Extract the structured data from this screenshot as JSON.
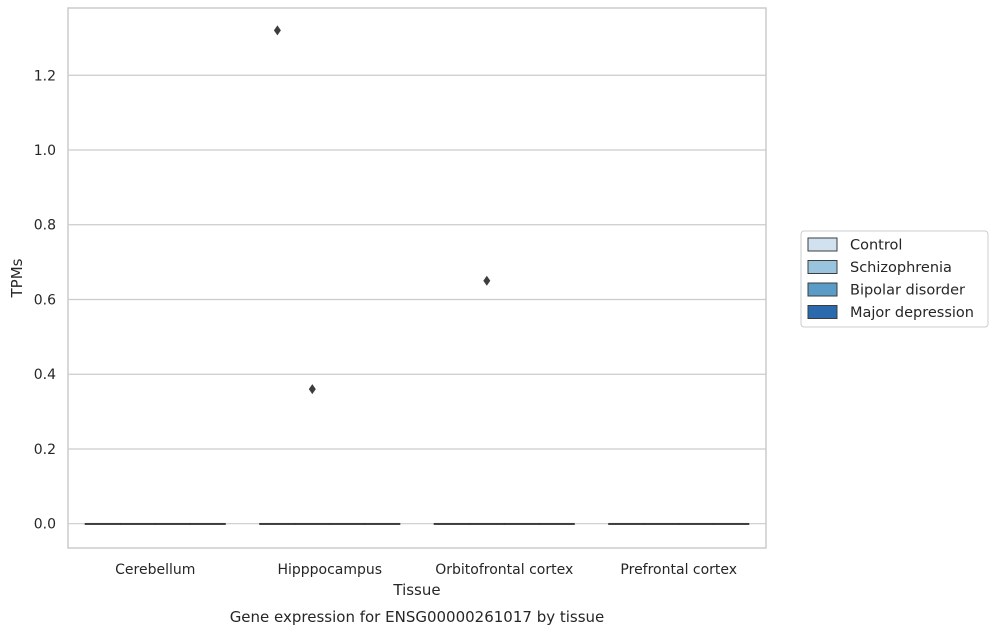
{
  "chart_data": {
    "type": "box",
    "title": "",
    "caption": "Gene expression for ENSG00000261017 by tissue",
    "xlabel": "Tissue",
    "ylabel": "TPMs",
    "ylim": [
      -0.065,
      1.38
    ],
    "yticks": [
      0.0,
      0.2,
      0.4,
      0.6,
      0.8,
      1.0,
      1.2
    ],
    "ytick_labels": [
      "0.0",
      "0.2",
      "0.4",
      "0.6",
      "0.8",
      "1.0",
      "1.2"
    ],
    "categories": [
      "Cerebellum",
      "Hipppocampus",
      "Orbitofrontal cortex",
      "Prefrontal cortex"
    ],
    "grid": true,
    "legend_position": "right",
    "series": [
      {
        "name": "Control",
        "color": "#d1e1f0",
        "boxes": [
          {
            "q1": 0,
            "median": 0,
            "q3": 0,
            "whisker_low": 0,
            "whisker_high": 0,
            "outliers": []
          },
          {
            "q1": 0,
            "median": 0,
            "q3": 0,
            "whisker_low": 0,
            "whisker_high": 0,
            "outliers": [
              1.32
            ]
          },
          {
            "q1": 0,
            "median": 0,
            "q3": 0,
            "whisker_low": 0,
            "whisker_high": 0,
            "outliers": []
          },
          {
            "q1": 0,
            "median": 0,
            "q3": 0,
            "whisker_low": 0,
            "whisker_high": 0,
            "outliers": []
          }
        ]
      },
      {
        "name": "Schizophrenia",
        "color": "#9ac3dd",
        "boxes": [
          {
            "q1": 0,
            "median": 0,
            "q3": 0,
            "whisker_low": 0,
            "whisker_high": 0,
            "outliers": []
          },
          {
            "q1": 0,
            "median": 0,
            "q3": 0,
            "whisker_low": 0,
            "whisker_high": 0,
            "outliers": [
              0.36
            ]
          },
          {
            "q1": 0,
            "median": 0,
            "q3": 0,
            "whisker_low": 0,
            "whisker_high": 0,
            "outliers": [
              0.65
            ]
          },
          {
            "q1": 0,
            "median": 0,
            "q3": 0,
            "whisker_low": 0,
            "whisker_high": 0,
            "outliers": []
          }
        ]
      },
      {
        "name": "Bipolar disorder",
        "color": "#5a9bc8",
        "boxes": [
          {
            "q1": 0,
            "median": 0,
            "q3": 0,
            "whisker_low": 0,
            "whisker_high": 0,
            "outliers": []
          },
          {
            "q1": 0,
            "median": 0,
            "q3": 0,
            "whisker_low": 0,
            "whisker_high": 0,
            "outliers": []
          },
          {
            "q1": 0,
            "median": 0,
            "q3": 0,
            "whisker_low": 0,
            "whisker_high": 0,
            "outliers": []
          },
          {
            "q1": 0,
            "median": 0,
            "q3": 0,
            "whisker_low": 0,
            "whisker_high": 0,
            "outliers": []
          }
        ]
      },
      {
        "name": "Major depression",
        "color": "#2a6aad",
        "boxes": [
          {
            "q1": 0,
            "median": 0,
            "q3": 0,
            "whisker_low": 0,
            "whisker_high": 0,
            "outliers": []
          },
          {
            "q1": 0,
            "median": 0,
            "q3": 0,
            "whisker_low": 0,
            "whisker_high": 0,
            "outliers": []
          },
          {
            "q1": 0,
            "median": 0,
            "q3": 0,
            "whisker_low": 0,
            "whisker_high": 0,
            "outliers": []
          },
          {
            "q1": 0,
            "median": 0,
            "q3": 0,
            "whisker_low": 0,
            "whisker_high": 0,
            "outliers": []
          }
        ]
      }
    ]
  }
}
